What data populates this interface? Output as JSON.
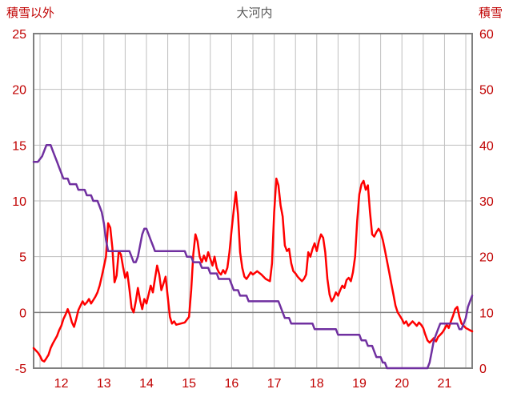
{
  "header": {
    "left_label": "積雪以外",
    "title": "大河内",
    "right_label": "積雪"
  },
  "chart_data": {
    "type": "line",
    "title": "大河内",
    "left_axis": {
      "label": "積雪以外",
      "min": -5,
      "max": 25,
      "ticks": [
        25,
        20,
        15,
        10,
        5,
        0,
        -5
      ]
    },
    "right_axis": {
      "label": "積雪",
      "min": 0,
      "max": 60,
      "ticks": [
        60,
        50,
        40,
        30,
        20,
        10,
        0
      ]
    },
    "x_axis": {
      "min": 11.35,
      "max": 21.65,
      "tick_labels": [
        12,
        13,
        14,
        15,
        16,
        17,
        18,
        19,
        20,
        21
      ],
      "gridline_step": 0.5
    },
    "grid": {
      "minor_color": "#BFBFBF",
      "zero_line_color": "#7F7F7F",
      "border_color": "#808080"
    },
    "series": [
      {
        "name": "積雪以外",
        "axis": "left",
        "color": "#FF0000",
        "points": [
          [
            11.35,
            -3.2
          ],
          [
            11.45,
            -3.6
          ],
          [
            11.5,
            -3.9
          ],
          [
            11.55,
            -4.3
          ],
          [
            11.6,
            -4.4
          ],
          [
            11.65,
            -4.1
          ],
          [
            11.7,
            -3.8
          ],
          [
            11.75,
            -3.2
          ],
          [
            11.8,
            -2.8
          ],
          [
            11.9,
            -2.1
          ],
          [
            11.95,
            -1.6
          ],
          [
            12.0,
            -1.2
          ],
          [
            12.05,
            -0.6
          ],
          [
            12.1,
            -0.2
          ],
          [
            12.15,
            0.3
          ],
          [
            12.2,
            -0.2
          ],
          [
            12.25,
            -0.9
          ],
          [
            12.3,
            -1.3
          ],
          [
            12.35,
            -0.6
          ],
          [
            12.4,
            0.2
          ],
          [
            12.45,
            0.6
          ],
          [
            12.5,
            1.0
          ],
          [
            12.55,
            0.7
          ],
          [
            12.6,
            0.9
          ],
          [
            12.65,
            1.2
          ],
          [
            12.7,
            0.8
          ],
          [
            12.75,
            1.1
          ],
          [
            12.8,
            1.4
          ],
          [
            12.85,
            1.8
          ],
          [
            12.9,
            2.4
          ],
          [
            12.95,
            3.2
          ],
          [
            13.0,
            4.1
          ],
          [
            13.05,
            5.0
          ],
          [
            13.1,
            8.0
          ],
          [
            13.15,
            7.6
          ],
          [
            13.2,
            5.8
          ],
          [
            13.25,
            2.7
          ],
          [
            13.3,
            3.3
          ],
          [
            13.35,
            5.5
          ],
          [
            13.4,
            5.2
          ],
          [
            13.45,
            4.1
          ],
          [
            13.5,
            3.1
          ],
          [
            13.55,
            3.6
          ],
          [
            13.6,
            2.1
          ],
          [
            13.65,
            0.4
          ],
          [
            13.7,
            0.0
          ],
          [
            13.75,
            1.0
          ],
          [
            13.8,
            2.2
          ],
          [
            13.85,
            1.1
          ],
          [
            13.9,
            0.3
          ],
          [
            13.95,
            1.2
          ],
          [
            14.0,
            0.8
          ],
          [
            14.05,
            1.6
          ],
          [
            14.1,
            2.4
          ],
          [
            14.15,
            1.8
          ],
          [
            14.2,
            3.0
          ],
          [
            14.25,
            4.2
          ],
          [
            14.3,
            3.4
          ],
          [
            14.35,
            2.0
          ],
          [
            14.4,
            2.6
          ],
          [
            14.45,
            3.2
          ],
          [
            14.5,
            1.4
          ],
          [
            14.55,
            -0.4
          ],
          [
            14.6,
            -1.0
          ],
          [
            14.65,
            -0.8
          ],
          [
            14.7,
            -1.1
          ],
          [
            14.8,
            -1.0
          ],
          [
            14.9,
            -0.9
          ],
          [
            15.0,
            -0.4
          ],
          [
            15.05,
            2.0
          ],
          [
            15.1,
            5.2
          ],
          [
            15.15,
            7.0
          ],
          [
            15.2,
            6.4
          ],
          [
            15.25,
            5.0
          ],
          [
            15.3,
            4.5
          ],
          [
            15.35,
            5.1
          ],
          [
            15.4,
            4.6
          ],
          [
            15.45,
            5.4
          ],
          [
            15.5,
            4.8
          ],
          [
            15.55,
            4.2
          ],
          [
            15.6,
            5.0
          ],
          [
            15.65,
            4.0
          ],
          [
            15.7,
            3.6
          ],
          [
            15.75,
            3.4
          ],
          [
            15.8,
            3.8
          ],
          [
            15.85,
            3.5
          ],
          [
            15.9,
            4.0
          ],
          [
            15.95,
            5.4
          ],
          [
            16.0,
            7.4
          ],
          [
            16.05,
            9.2
          ],
          [
            16.1,
            10.8
          ],
          [
            16.15,
            8.8
          ],
          [
            16.2,
            5.4
          ],
          [
            16.25,
            4.0
          ],
          [
            16.3,
            3.2
          ],
          [
            16.35,
            3.0
          ],
          [
            16.4,
            3.3
          ],
          [
            16.45,
            3.6
          ],
          [
            16.5,
            3.4
          ],
          [
            16.6,
            3.7
          ],
          [
            16.7,
            3.4
          ],
          [
            16.8,
            3.0
          ],
          [
            16.9,
            2.8
          ],
          [
            16.95,
            4.4
          ],
          [
            17.0,
            9.0
          ],
          [
            17.05,
            12.0
          ],
          [
            17.1,
            11.4
          ],
          [
            17.15,
            9.6
          ],
          [
            17.2,
            8.6
          ],
          [
            17.25,
            6.0
          ],
          [
            17.3,
            5.5
          ],
          [
            17.35,
            5.7
          ],
          [
            17.4,
            4.4
          ],
          [
            17.45,
            3.7
          ],
          [
            17.5,
            3.5
          ],
          [
            17.55,
            3.2
          ],
          [
            17.6,
            3.0
          ],
          [
            17.65,
            2.8
          ],
          [
            17.7,
            3.0
          ],
          [
            17.75,
            3.4
          ],
          [
            17.8,
            5.4
          ],
          [
            17.85,
            5.0
          ],
          [
            17.9,
            5.7
          ],
          [
            17.95,
            6.2
          ],
          [
            18.0,
            5.5
          ],
          [
            18.05,
            6.4
          ],
          [
            18.1,
            7.0
          ],
          [
            18.15,
            6.7
          ],
          [
            18.2,
            5.4
          ],
          [
            18.25,
            3.0
          ],
          [
            18.3,
            1.6
          ],
          [
            18.35,
            1.0
          ],
          [
            18.4,
            1.3
          ],
          [
            18.45,
            1.8
          ],
          [
            18.5,
            1.5
          ],
          [
            18.55,
            2.0
          ],
          [
            18.6,
            2.4
          ],
          [
            18.65,
            2.2
          ],
          [
            18.7,
            2.9
          ],
          [
            18.75,
            3.1
          ],
          [
            18.8,
            2.8
          ],
          [
            18.85,
            3.6
          ],
          [
            18.9,
            5.0
          ],
          [
            18.95,
            8.2
          ],
          [
            19.0,
            10.6
          ],
          [
            19.05,
            11.5
          ],
          [
            19.1,
            11.8
          ],
          [
            19.15,
            11.0
          ],
          [
            19.2,
            11.4
          ],
          [
            19.25,
            9.0
          ],
          [
            19.3,
            7.0
          ],
          [
            19.35,
            6.8
          ],
          [
            19.4,
            7.2
          ],
          [
            19.45,
            7.5
          ],
          [
            19.5,
            7.2
          ],
          [
            19.55,
            6.5
          ],
          [
            19.6,
            5.6
          ],
          [
            19.65,
            4.6
          ],
          [
            19.7,
            3.6
          ],
          [
            19.75,
            2.6
          ],
          [
            19.8,
            1.6
          ],
          [
            19.85,
            0.6
          ],
          [
            19.9,
            0.0
          ],
          [
            19.95,
            -0.3
          ],
          [
            20.0,
            -0.6
          ],
          [
            20.05,
            -1.0
          ],
          [
            20.1,
            -0.8
          ],
          [
            20.15,
            -1.2
          ],
          [
            20.2,
            -1.0
          ],
          [
            20.25,
            -0.8
          ],
          [
            20.3,
            -1.0
          ],
          [
            20.35,
            -1.2
          ],
          [
            20.4,
            -0.9
          ],
          [
            20.45,
            -1.1
          ],
          [
            20.5,
            -1.4
          ],
          [
            20.55,
            -2.0
          ],
          [
            20.6,
            -2.5
          ],
          [
            20.65,
            -2.7
          ],
          [
            20.7,
            -2.5
          ],
          [
            20.75,
            -2.3
          ],
          [
            20.8,
            -2.6
          ],
          [
            20.85,
            -2.2
          ],
          [
            20.9,
            -2.0
          ],
          [
            20.95,
            -1.8
          ],
          [
            21.0,
            -1.5
          ],
          [
            21.05,
            -1.1
          ],
          [
            21.1,
            -1.4
          ],
          [
            21.15,
            -0.8
          ],
          [
            21.2,
            -0.3
          ],
          [
            21.25,
            0.3
          ],
          [
            21.3,
            0.5
          ],
          [
            21.35,
            -0.4
          ],
          [
            21.4,
            -1.0
          ],
          [
            21.45,
            -1.2
          ],
          [
            21.5,
            -1.4
          ],
          [
            21.55,
            -1.5
          ],
          [
            21.6,
            -1.6
          ],
          [
            21.65,
            -1.7
          ]
        ]
      },
      {
        "name": "積雪",
        "axis": "right",
        "color": "#7030A0",
        "points": [
          [
            11.35,
            37
          ],
          [
            11.45,
            37
          ],
          [
            11.55,
            38
          ],
          [
            11.6,
            39
          ],
          [
            11.65,
            40
          ],
          [
            11.75,
            40
          ],
          [
            11.8,
            39
          ],
          [
            11.85,
            38
          ],
          [
            11.9,
            37
          ],
          [
            11.95,
            36
          ],
          [
            12.0,
            35
          ],
          [
            12.05,
            34
          ],
          [
            12.15,
            34
          ],
          [
            12.2,
            33
          ],
          [
            12.35,
            33
          ],
          [
            12.4,
            32
          ],
          [
            12.55,
            32
          ],
          [
            12.6,
            31
          ],
          [
            12.7,
            31
          ],
          [
            12.75,
            30
          ],
          [
            12.85,
            30
          ],
          [
            12.9,
            29
          ],
          [
            12.95,
            28
          ],
          [
            13.0,
            26
          ],
          [
            13.05,
            23
          ],
          [
            13.1,
            21
          ],
          [
            13.6,
            21
          ],
          [
            13.65,
            20
          ],
          [
            13.7,
            19
          ],
          [
            13.75,
            19
          ],
          [
            13.8,
            20
          ],
          [
            13.85,
            22
          ],
          [
            13.9,
            24
          ],
          [
            13.95,
            25
          ],
          [
            14.0,
            25
          ],
          [
            14.05,
            24
          ],
          [
            14.1,
            23
          ],
          [
            14.15,
            22
          ],
          [
            14.2,
            21
          ],
          [
            14.9,
            21
          ],
          [
            14.95,
            20
          ],
          [
            15.05,
            20
          ],
          [
            15.1,
            19
          ],
          [
            15.25,
            19
          ],
          [
            15.3,
            18
          ],
          [
            15.45,
            18
          ],
          [
            15.5,
            17
          ],
          [
            15.65,
            17
          ],
          [
            15.7,
            16
          ],
          [
            15.95,
            16
          ],
          [
            16.0,
            15
          ],
          [
            16.05,
            14
          ],
          [
            16.15,
            14
          ],
          [
            16.2,
            13
          ],
          [
            16.35,
            13
          ],
          [
            16.4,
            12
          ],
          [
            17.1,
            12
          ],
          [
            17.15,
            11
          ],
          [
            17.2,
            10
          ],
          [
            17.25,
            9
          ],
          [
            17.35,
            9
          ],
          [
            17.4,
            8
          ],
          [
            17.9,
            8
          ],
          [
            17.95,
            7
          ],
          [
            18.45,
            7
          ],
          [
            18.5,
            6
          ],
          [
            19.0,
            6
          ],
          [
            19.05,
            5
          ],
          [
            19.15,
            5
          ],
          [
            19.2,
            4
          ],
          [
            19.3,
            4
          ],
          [
            19.35,
            3
          ],
          [
            19.4,
            2
          ],
          [
            19.5,
            2
          ],
          [
            19.55,
            1
          ],
          [
            19.6,
            1
          ],
          [
            19.65,
            0
          ],
          [
            20.6,
            0
          ],
          [
            20.65,
            1
          ],
          [
            20.7,
            3
          ],
          [
            20.75,
            5
          ],
          [
            20.8,
            6
          ],
          [
            20.85,
            7
          ],
          [
            20.9,
            8
          ],
          [
            21.3,
            8
          ],
          [
            21.35,
            7
          ],
          [
            21.4,
            7
          ],
          [
            21.45,
            8
          ],
          [
            21.5,
            9
          ],
          [
            21.55,
            11
          ],
          [
            21.6,
            12
          ],
          [
            21.65,
            13
          ]
        ]
      }
    ]
  }
}
